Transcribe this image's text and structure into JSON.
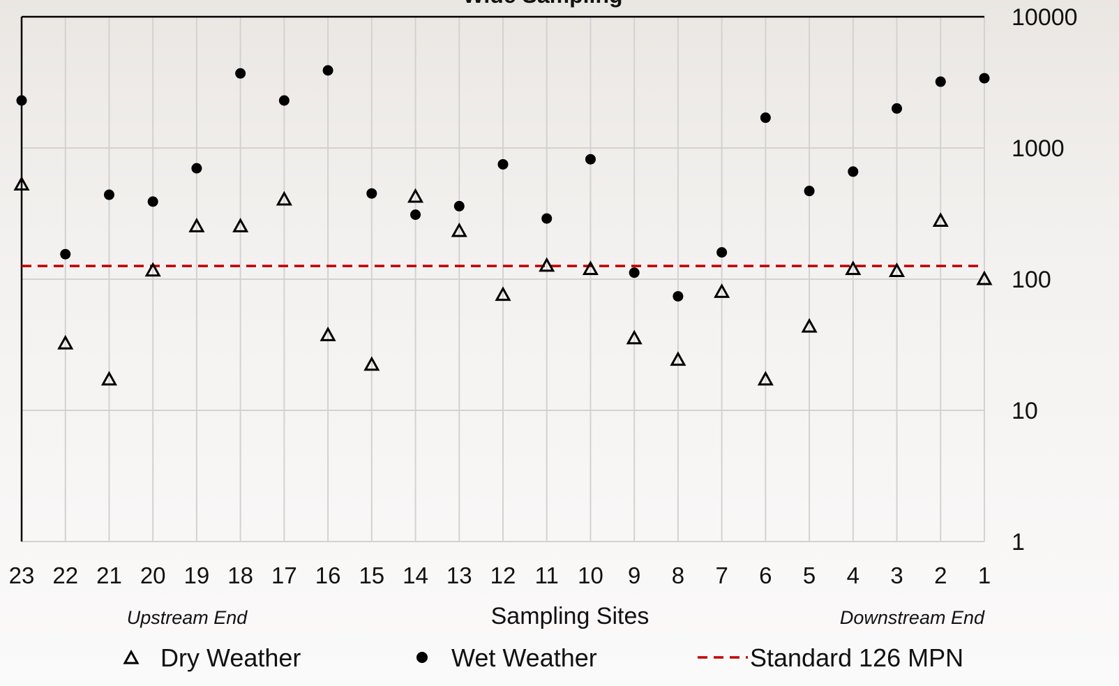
{
  "chart_data": {
    "type": "scatter",
    "title": "Wide Sampling",
    "xlabel": "Sampling Sites",
    "ylabel": "",
    "y_scale": "log",
    "ylim": [
      1,
      10000
    ],
    "y_ticks": [
      "1",
      "10",
      "100",
      "1000",
      "10000"
    ],
    "y_axis_side": "right",
    "grid": true,
    "categories": [
      "23",
      "22",
      "21",
      "20",
      "19",
      "18",
      "17",
      "16",
      "15",
      "14",
      "13",
      "12",
      "11",
      "10",
      "9",
      "8",
      "7",
      "6",
      "5",
      "4",
      "3",
      "2",
      "1"
    ],
    "annotations": {
      "left": "Upstream End",
      "right": "Downstream End"
    },
    "series": [
      {
        "name": "Dry Weather",
        "marker": "open-triangle",
        "color": "#000000",
        "values": [
          520,
          32,
          17,
          115,
          250,
          250,
          400,
          37,
          22,
          420,
          230,
          75,
          125,
          118,
          35,
          24,
          79,
          17,
          43,
          118,
          114,
          275,
          99
        ]
      },
      {
        "name": "Wet Weather",
        "marker": "filled-circle",
        "color": "#000000",
        "values": [
          2300,
          155,
          440,
          390,
          700,
          3700,
          2300,
          3900,
          450,
          310,
          360,
          750,
          290,
          820,
          112,
          74,
          160,
          1700,
          470,
          660,
          2000,
          3200,
          3400
        ]
      },
      {
        "name": "Standard 126 MPN",
        "marker": "dashed-line",
        "color": "#c00000",
        "value": 126
      }
    ],
    "legend": {
      "position": "bottom",
      "items": [
        "Dry Weather",
        "Wet Weather",
        "Standard 126 MPN"
      ]
    }
  }
}
